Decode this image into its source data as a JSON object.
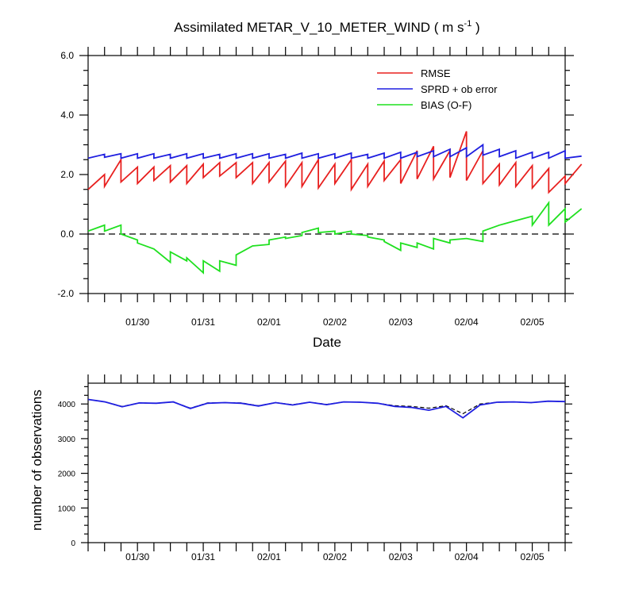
{
  "chart_data": [
    {
      "type": "line",
      "title_main": "Assimilated METAR_V_10_METER_WIND ( m s",
      "title_sup": "-1",
      "title_end": " )",
      "xlabel": "Date",
      "ylabel": "",
      "ylim": [
        -2.0,
        6.0
      ],
      "yticks": [
        -2.0,
        0.0,
        2.0,
        4.0,
        6.0
      ],
      "ytick_labels": [
        "-2.0",
        "0.0",
        "2.0",
        "4.0",
        "6.0"
      ],
      "xlim": [
        0,
        29
      ],
      "xtick_labels": [
        "01/30",
        "01/31",
        "02/01",
        "02/02",
        "02/03",
        "02/04",
        "02/05"
      ],
      "xtick_positions": [
        3,
        7,
        11,
        15,
        19,
        23,
        27
      ],
      "zero_line": true,
      "legend_position": "top-right",
      "series": [
        {
          "name": "RMSE",
          "color": "#e8201f",
          "sawtooth": true,
          "segments": [
            [
              1.5,
              2.0
            ],
            [
              1.6,
              2.5
            ],
            [
              1.75,
              2.25
            ],
            [
              1.7,
              2.25
            ],
            [
              1.8,
              2.3
            ],
            [
              1.75,
              2.3
            ],
            [
              1.7,
              2.35
            ],
            [
              1.9,
              2.4
            ],
            [
              1.95,
              2.4
            ],
            [
              1.9,
              2.4
            ],
            [
              1.7,
              2.4
            ],
            [
              1.75,
              2.45
            ],
            [
              1.6,
              2.4
            ],
            [
              1.6,
              2.5
            ],
            [
              1.55,
              2.35
            ],
            [
              1.7,
              2.5
            ],
            [
              1.5,
              2.35
            ],
            [
              1.6,
              2.45
            ],
            [
              1.8,
              2.5
            ],
            [
              1.7,
              2.8
            ],
            [
              1.85,
              2.95
            ],
            [
              1.85,
              2.8
            ],
            [
              1.9,
              3.45
            ],
            [
              1.8,
              2.8
            ],
            [
              1.7,
              2.35
            ],
            [
              1.65,
              2.4
            ],
            [
              1.6,
              2.3
            ],
            [
              1.55,
              2.2
            ],
            [
              1.4,
              1.95
            ],
            [
              1.7,
              2.35
            ]
          ]
        },
        {
          "name": "SPRD + ob error",
          "color": "#1f1fe0",
          "sawtooth": true,
          "segments": [
            [
              2.55,
              2.68
            ],
            [
              2.58,
              2.7
            ],
            [
              2.55,
              2.7
            ],
            [
              2.55,
              2.7
            ],
            [
              2.55,
              2.68
            ],
            [
              2.55,
              2.7
            ],
            [
              2.55,
              2.7
            ],
            [
              2.55,
              2.68
            ],
            [
              2.55,
              2.7
            ],
            [
              2.55,
              2.7
            ],
            [
              2.55,
              2.7
            ],
            [
              2.55,
              2.68
            ],
            [
              2.55,
              2.72
            ],
            [
              2.55,
              2.7
            ],
            [
              2.55,
              2.7
            ],
            [
              2.55,
              2.72
            ],
            [
              2.55,
              2.68
            ],
            [
              2.55,
              2.72
            ],
            [
              2.55,
              2.75
            ],
            [
              2.55,
              2.75
            ],
            [
              2.6,
              2.8
            ],
            [
              2.6,
              2.85
            ],
            [
              2.6,
              2.9
            ],
            [
              2.6,
              3.0
            ],
            [
              2.65,
              2.85
            ],
            [
              2.6,
              2.8
            ],
            [
              2.55,
              2.75
            ],
            [
              2.55,
              2.75
            ],
            [
              2.55,
              2.8
            ],
            [
              2.55,
              2.62
            ]
          ]
        },
        {
          "name": "BIAS (O-F)",
          "color": "#1fe01f",
          "sawtooth": true,
          "segments": [
            [
              0.1,
              0.3
            ],
            [
              0.1,
              0.3
            ],
            [
              0.0,
              -0.2
            ],
            [
              -0.3,
              -0.5
            ],
            [
              -0.5,
              -0.95
            ],
            [
              -0.6,
              -0.9
            ],
            [
              -0.8,
              -1.3
            ],
            [
              -0.9,
              -1.25
            ],
            [
              -0.9,
              -1.05
            ],
            [
              -0.7,
              -0.4
            ],
            [
              -0.4,
              -0.35
            ],
            [
              -0.2,
              -0.1
            ],
            [
              -0.15,
              -0.05
            ],
            [
              0.05,
              0.2
            ],
            [
              0.05,
              0.1
            ],
            [
              0.0,
              0.1
            ],
            [
              0.0,
              -0.05
            ],
            [
              -0.1,
              -0.2
            ],
            [
              -0.25,
              -0.55
            ],
            [
              -0.3,
              -0.45
            ],
            [
              -0.3,
              -0.5
            ],
            [
              -0.15,
              -0.3
            ],
            [
              -0.2,
              -0.15
            ],
            [
              -0.15,
              -0.25
            ],
            [
              0.1,
              0.3
            ],
            [
              0.3,
              0.45
            ],
            [
              0.45,
              0.6
            ],
            [
              0.3,
              1.05
            ],
            [
              0.3,
              0.85
            ],
            [
              0.4,
              0.85
            ]
          ]
        }
      ]
    },
    {
      "type": "line",
      "xlabel": "",
      "ylabel": "number of observations",
      "ylim": [
        0,
        4600
      ],
      "yticks": [
        0,
        1000,
        2000,
        3000,
        4000
      ],
      "ytick_labels": [
        "0",
        "1000",
        "2000",
        "3000",
        "4000"
      ],
      "xlim": [
        0,
        29
      ],
      "xtick_labels": [
        "01/30",
        "01/31",
        "02/01",
        "02/02",
        "02/03",
        "02/04",
        "02/05"
      ],
      "xtick_positions": [
        3,
        7,
        11,
        15,
        19,
        23,
        27
      ],
      "series": [
        {
          "color": "#000000",
          "dash": "5,3",
          "values": [
            4130,
            4060,
            3930,
            4030,
            4020,
            4060,
            3880,
            4030,
            4040,
            4030,
            3950,
            4040,
            3980,
            4050,
            3990,
            4060,
            4050,
            4020,
            3950,
            3930,
            3880,
            3950,
            3720,
            4000,
            4050,
            4060,
            4040,
            4080,
            4070
          ]
        },
        {
          "color": "#1f1fe0",
          "values": [
            4130,
            4060,
            3920,
            4030,
            4020,
            4060,
            3870,
            4020,
            4040,
            4020,
            3940,
            4040,
            3970,
            4050,
            3980,
            4060,
            4050,
            4020,
            3930,
            3900,
            3820,
            3930,
            3600,
            3970,
            4050,
            4060,
            4040,
            4080,
            4070
          ]
        }
      ]
    }
  ]
}
